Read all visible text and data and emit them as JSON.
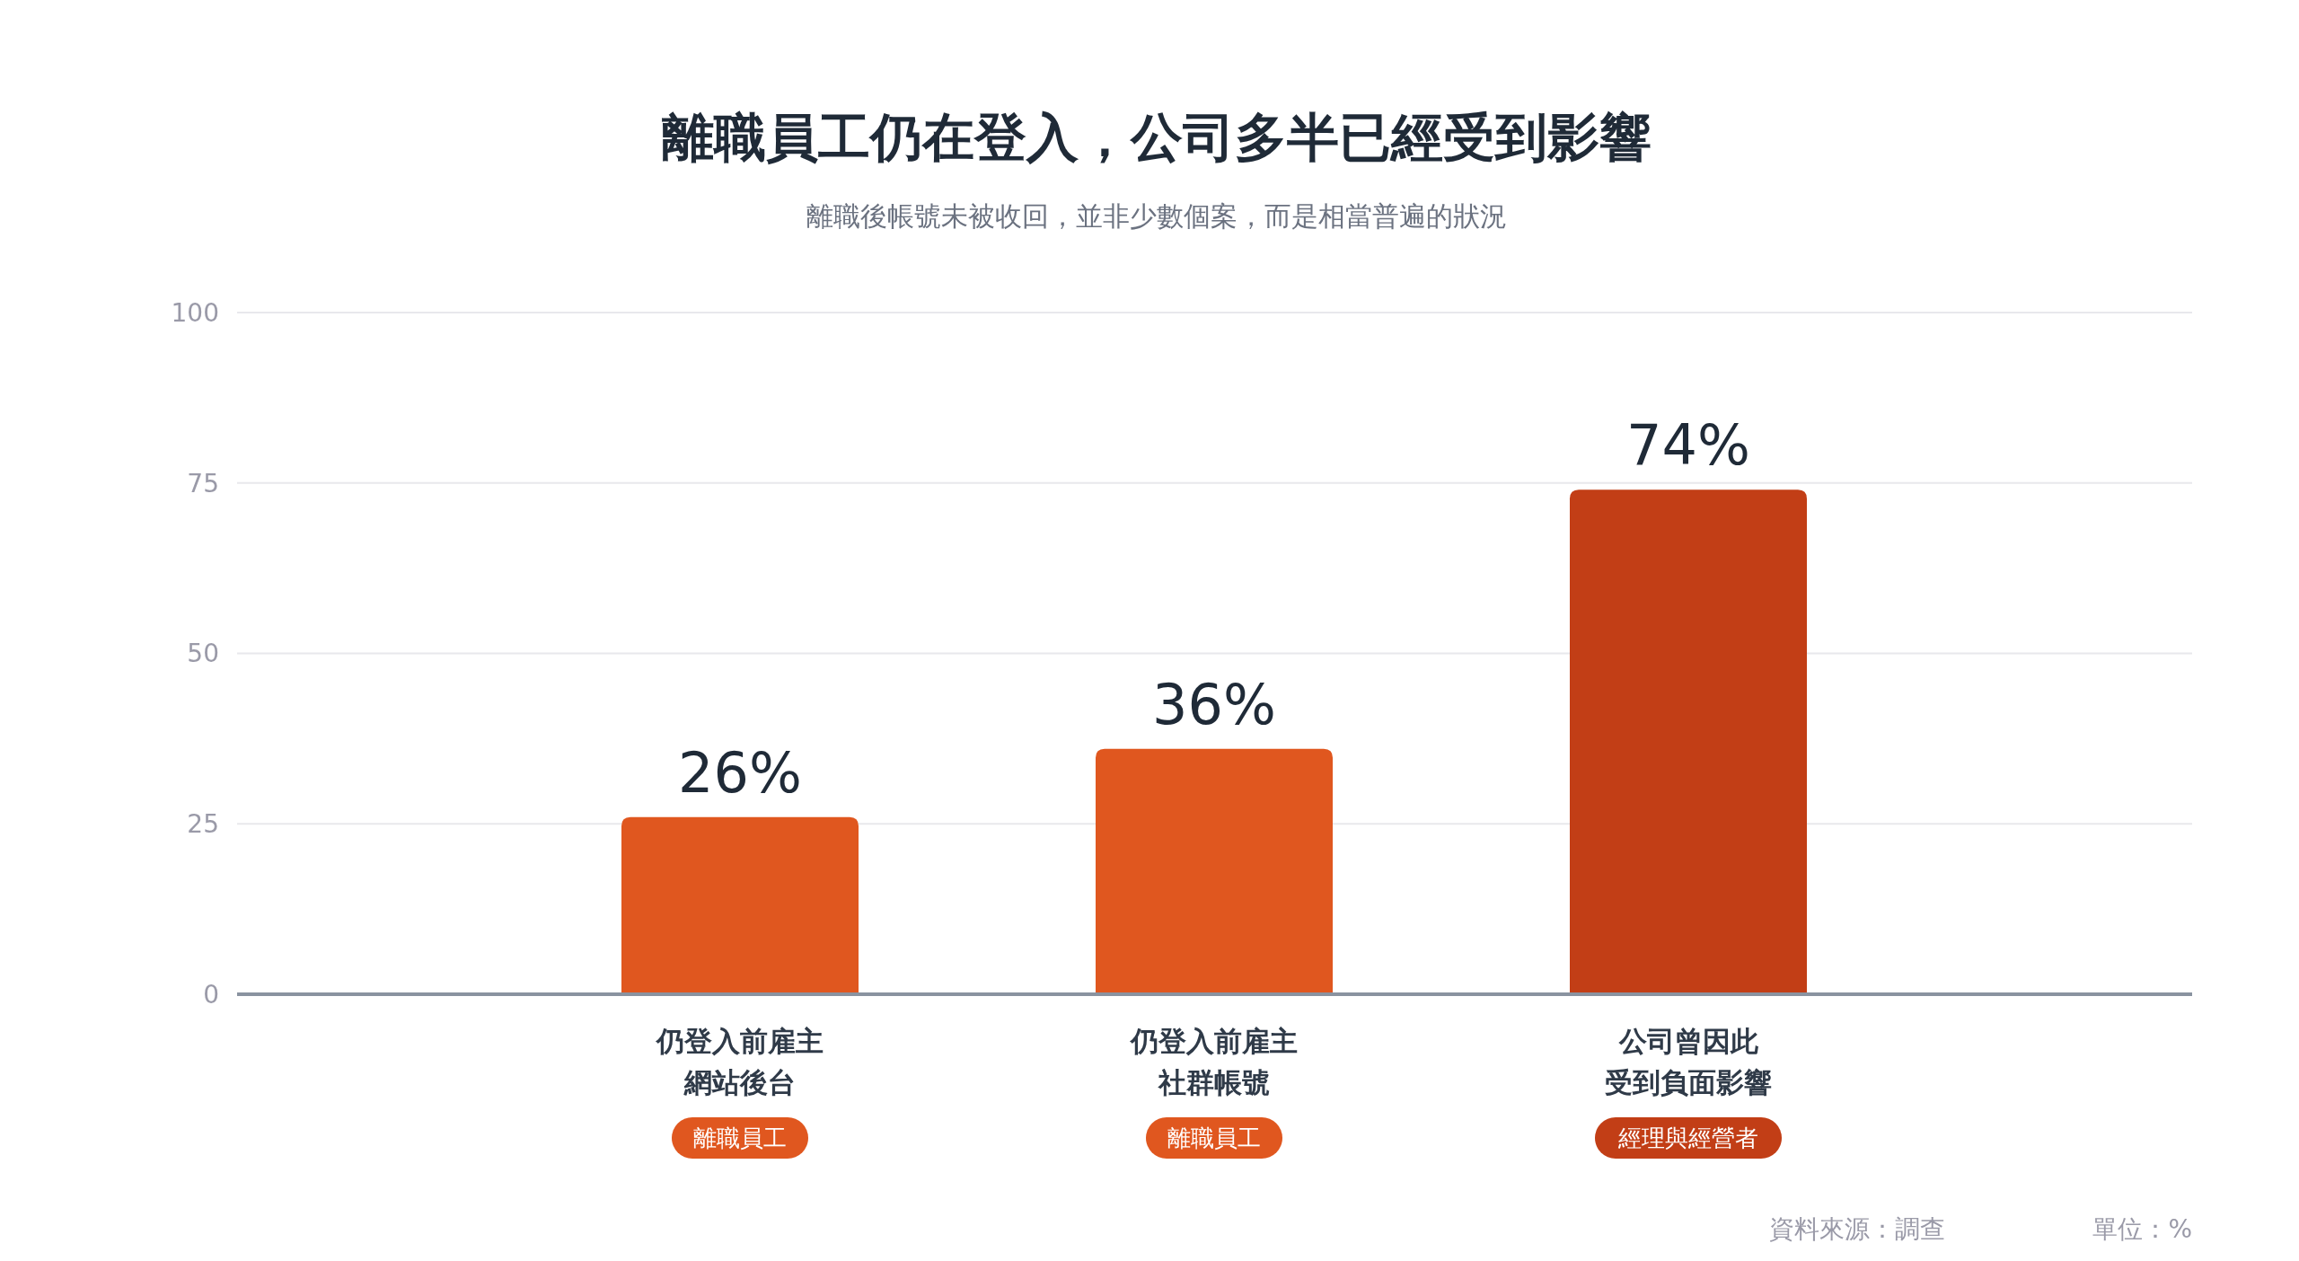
{
  "chart_data": {
    "type": "bar",
    "title": "離職員工仍在登入，公司多半已經受到影響",
    "subtitle": "離職後帳號未被收回，並非少數個案，而是相當普遍的狀況",
    "categories": [
      "仍登入前雇主網站後台",
      "仍登入前雇主社群帳號",
      "公司曾因此受到負面影響"
    ],
    "values": [
      26,
      36,
      74
    ],
    "value_labels": [
      "26%",
      "36%",
      "74%"
    ],
    "colors": [
      "#e0571f",
      "#e0571f",
      "#c23e16"
    ],
    "ylim": [
      0,
      100
    ],
    "yticks": [
      0,
      25,
      50,
      75,
      100
    ],
    "grid": "y",
    "annotations": [
      "離職員工",
      "離職員工",
      "經理與經營者",
      "資料來源：調查",
      "單位：%"
    ]
  }
}
